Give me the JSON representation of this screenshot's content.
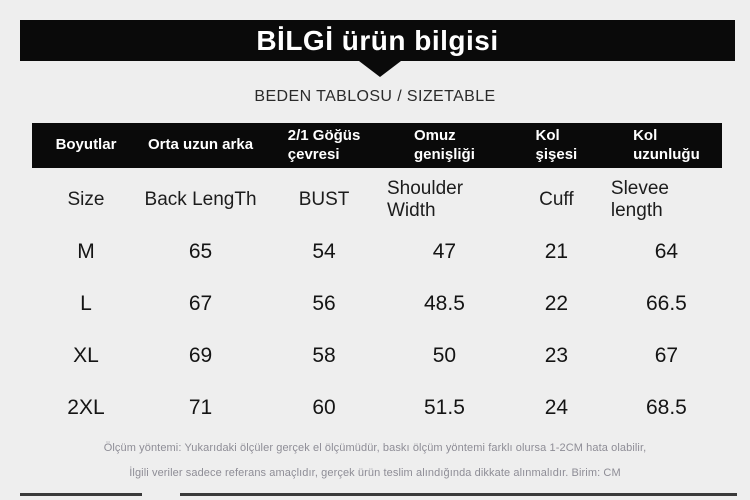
{
  "colors": {
    "background": "#eeeeee",
    "bar_black": "#0a0a0a",
    "footnote_text": "#8e8d96"
  },
  "header": {
    "title": "BİLGİ ürün bilgisi",
    "subtitle": "BEDEN TABLOSU / SIZETABLE"
  },
  "table": {
    "header_tr": [
      "Boyutlar",
      "Orta uzun arka",
      "2/1 Göğüs\nçevresi",
      "Omuz\ngenişliği",
      "Kol\nşişesi",
      "Kol\nuzunluğu"
    ],
    "header_en": [
      "Size",
      "Back LengTh",
      "BUST",
      "Shoulder Width",
      "Cuff",
      "Slevee length"
    ],
    "rows": [
      [
        "M",
        "65",
        "54",
        "47",
        "21",
        "64"
      ],
      [
        "L",
        "67",
        "56",
        "48.5",
        "22",
        "66.5"
      ],
      [
        "XL",
        "69",
        "58",
        "50",
        "23",
        "67"
      ],
      [
        "2XL",
        "71",
        "60",
        "51.5",
        "24",
        "68.5"
      ]
    ]
  },
  "footnotes": {
    "line1": "Ölçüm yöntemi: Yukarıdaki ölçüler gerçek el ölçümüdür, baskı ölçüm yöntemi farklı olursa 1-2CM hata olabilir,",
    "line2": "İlgili veriler sadece referans amaçlıdır, gerçek ürün teslim alındığında dikkate alınmalıdır. Birim: CM"
  }
}
